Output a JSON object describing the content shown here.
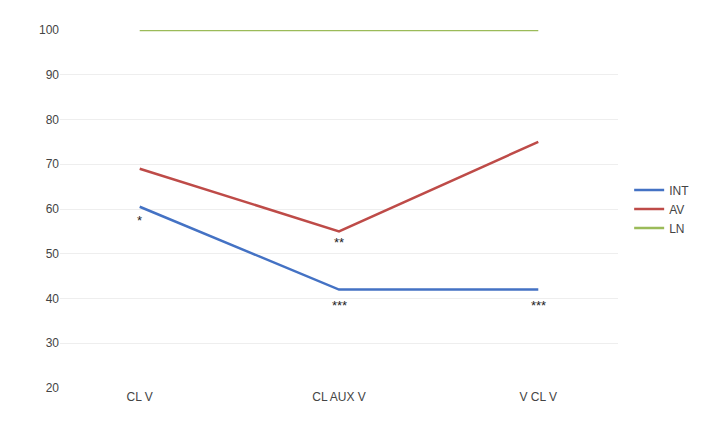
{
  "chart_data": {
    "type": "line",
    "categories": [
      "CL V",
      "CL AUX V",
      "V CL V"
    ],
    "series": [
      {
        "name": "INT",
        "color": "#4472C4",
        "values": [
          60.5,
          42.0,
          42.0
        ]
      },
      {
        "name": "AV",
        "color": "#BE4B48",
        "values": [
          69.0,
          55.0,
          75.0
        ]
      },
      {
        "name": "LN",
        "color": "#9BBB59",
        "values": [
          100.0,
          100.0,
          100.0
        ]
      }
    ],
    "annotations": [
      {
        "text": "*",
        "x": "CL V",
        "y": 57.5
      },
      {
        "text": "**",
        "x": "CL AUX V",
        "y": 52.5
      },
      {
        "text": "***",
        "x": "CL AUX V",
        "y": 38.5
      },
      {
        "text": "***",
        "x": "V CL V",
        "y": 38.5
      }
    ],
    "ylim": [
      20,
      100
    ],
    "yticks": [
      20,
      30,
      40,
      50,
      60,
      70,
      80,
      90,
      100
    ],
    "grid": true,
    "legend": "right"
  }
}
